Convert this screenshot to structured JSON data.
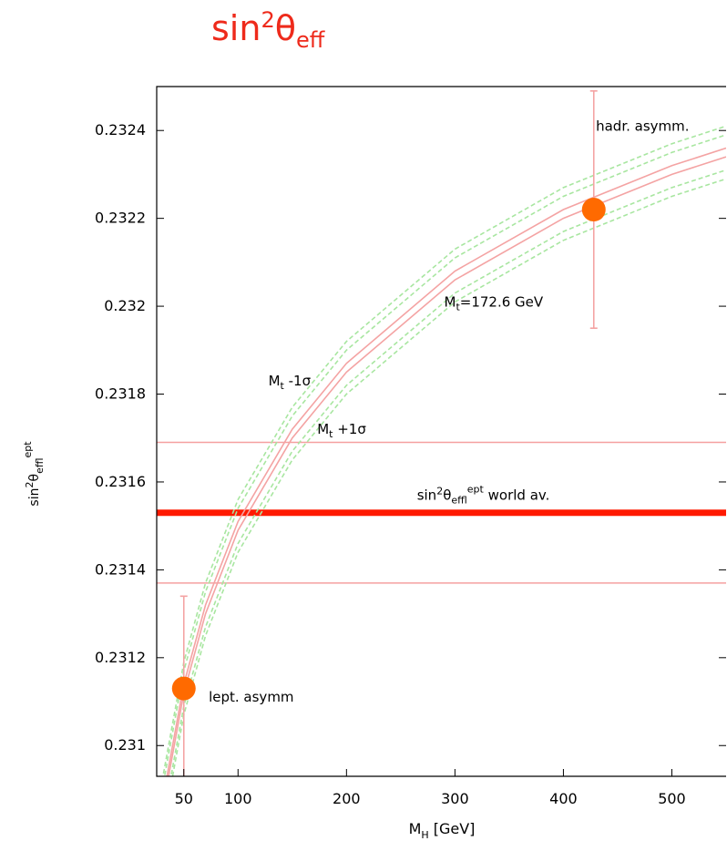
{
  "title": {
    "base": "sin",
    "sup": "2",
    "theta": "θ",
    "sub": "eff"
  },
  "chart_data": {
    "type": "line",
    "xlabel": {
      "main": "M",
      "sub": "H",
      "rest": " [GeV]"
    },
    "ylabel": {
      "main": "sin",
      "sup": "2",
      "theta": "θ",
      "sub": "eff",
      "sup2": "lept"
    },
    "xlim": [
      25,
      550
    ],
    "ylim": [
      0.23093,
      0.2325
    ],
    "x_ticks": [
      50,
      100,
      200,
      300,
      400,
      500
    ],
    "x_tick_labels": [
      "50",
      "100",
      "200",
      "300",
      "400",
      "500"
    ],
    "y_ticks": [
      0.231,
      0.2312,
      0.2314,
      0.2316,
      0.2318,
      0.232,
      0.2322,
      0.2324
    ],
    "y_tick_labels": [
      "0.231",
      "0.2312",
      "0.2314",
      "0.2316",
      "0.2318",
      "0.232",
      "0.2322",
      "0.2324"
    ],
    "grid": false,
    "series": [
      {
        "x": [
          30,
          50,
          70,
          100,
          150,
          200,
          300,
          400,
          500,
          550
        ],
        "y": [
          0.23085,
          0.23112,
          0.2313,
          0.23149,
          0.2317,
          0.23185,
          0.23206,
          0.2322,
          0.2323,
          0.23234
        ],
        "color": "#f4a3a3",
        "style": "solid"
      },
      {
        "x": [
          30,
          50,
          70,
          100,
          150,
          200,
          300,
          400,
          500,
          550
        ],
        "y": [
          0.23087,
          0.23114,
          0.23132,
          0.23151,
          0.23172,
          0.23187,
          0.23208,
          0.23222,
          0.23232,
          0.23236
        ],
        "color": "#f4a3a3",
        "style": "solid"
      },
      {
        "x": [
          30,
          50,
          70,
          100,
          150,
          200,
          300,
          400,
          500,
          550
        ],
        "y": [
          0.23092,
          0.23119,
          0.23137,
          0.23156,
          0.23177,
          0.23192,
          0.23213,
          0.23227,
          0.23237,
          0.23241
        ],
        "color": "#a8e6a0",
        "style": "dashed"
      },
      {
        "x": [
          30,
          50,
          70,
          100,
          150,
          200,
          300,
          400,
          500,
          550
        ],
        "y": [
          0.2309,
          0.23117,
          0.23135,
          0.23154,
          0.23175,
          0.2319,
          0.23211,
          0.23225,
          0.23235,
          0.23239
        ],
        "color": "#a8e6a0",
        "style": "dashed"
      },
      {
        "x": [
          30,
          50,
          70,
          100,
          150,
          200,
          300,
          400,
          500,
          550
        ],
        "y": [
          0.23082,
          0.23109,
          0.23127,
          0.23146,
          0.23167,
          0.23182,
          0.23203,
          0.23217,
          0.23227,
          0.23231
        ],
        "color": "#a8e6a0",
        "style": "dashed"
      },
      {
        "x": [
          30,
          50,
          70,
          100,
          150,
          200,
          300,
          400,
          500,
          550
        ],
        "y": [
          0.2308,
          0.23107,
          0.23125,
          0.23144,
          0.23165,
          0.2318,
          0.23201,
          0.23215,
          0.23225,
          0.23229
        ],
        "color": "#a8e6a0",
        "style": "dashed"
      }
    ],
    "hlines": [
      {
        "y": 0.23153,
        "color": "#ff1a00",
        "width": "thick"
      },
      {
        "y": 0.23169,
        "color": "#f5a0a0",
        "width": "thin"
      },
      {
        "y": 0.23137,
        "color": "#f5a0a0",
        "width": "thin"
      }
    ],
    "points": [
      {
        "x": 50,
        "y": 0.23113,
        "err_low": 0.23092,
        "err_high": 0.23134,
        "color": "#ff6a00",
        "err_color": "#f4a3a3"
      },
      {
        "x": 428,
        "y": 0.23222,
        "err_low": 0.23195,
        "err_high": 0.23249,
        "color": "#ff6a00",
        "err_color": "#f4a3a3"
      }
    ],
    "annotations": [
      {
        "key": "hadr",
        "text": "hadr. asymm.",
        "x": 430,
        "y": 0.23241
      },
      {
        "key": "mt",
        "main": "M",
        "sub": "t",
        "rest": "=172.6 GeV",
        "x": 290,
        "y": 0.23201
      },
      {
        "key": "mtminus",
        "main": "M",
        "sub": "t",
        "rest": " -1σ",
        "x": 128,
        "y": 0.23183
      },
      {
        "key": "mtplus",
        "main": "M",
        "sub": "t",
        "rest": " +1σ",
        "x": 173,
        "y": 0.23172
      },
      {
        "key": "world",
        "main": "sin",
        "sup": "2",
        "theta": "θ",
        "sub": "eff",
        "sup2": "lept",
        "rest": " world av.",
        "x": 265,
        "y": 0.23157
      },
      {
        "key": "lept",
        "text": "lept. asymm",
        "x": 73,
        "y": 0.23111
      }
    ]
  }
}
